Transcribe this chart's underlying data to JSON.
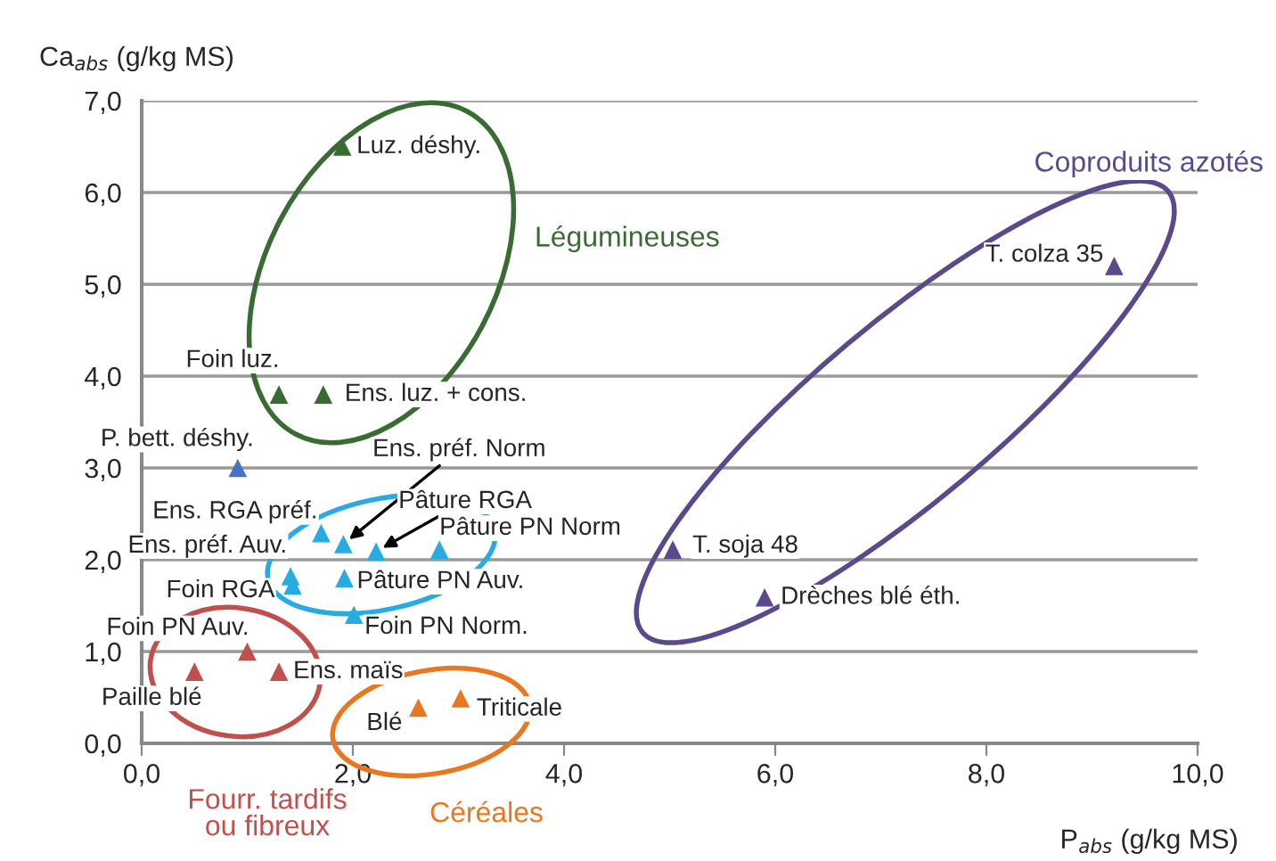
{
  "chart_data": {
    "type": "scatter",
    "xlabel": "P$_{abs}$ (g/kg MS)",
    "ylabel": "Ca$_{abs}$ (g/kg MS)",
    "xlim": [
      0,
      10
    ],
    "ylim": [
      0,
      7
    ],
    "xticks": [
      {
        "value": 0,
        "label": "0,0"
      },
      {
        "value": 2,
        "label": "2,0"
      },
      {
        "value": 4,
        "label": "4,0"
      },
      {
        "value": 6,
        "label": "6,0"
      },
      {
        "value": 8,
        "label": "8,0"
      },
      {
        "value": 10,
        "label": "10,0"
      }
    ],
    "yticks": [
      {
        "value": 0,
        "label": "0,0"
      },
      {
        "value": 1,
        "label": "1,0"
      },
      {
        "value": 2,
        "label": "2,0"
      },
      {
        "value": 3,
        "label": "3,0"
      },
      {
        "value": 4,
        "label": "4,0"
      },
      {
        "value": 5,
        "label": "5,0"
      },
      {
        "value": 6,
        "label": "6,0"
      },
      {
        "value": 7,
        "label": "7,0"
      }
    ],
    "grid": "y",
    "marker": "triangle",
    "series": [
      {
        "name": "Légumineuses",
        "color": "#3a6b35",
        "x": [
          1.9,
          1.3,
          1.72
        ],
        "values": [
          6.5,
          3.8,
          3.8
        ]
      },
      {
        "color": "#29abe2",
        "x": [
          1.7,
          1.91,
          2.22,
          2.82,
          1.41,
          1.43,
          1.92,
          2.01
        ],
        "values": [
          2.29,
          2.17,
          2.09,
          2.11,
          1.82,
          1.72,
          1.8,
          1.4
        ]
      },
      {
        "color": "#4472c4",
        "x": [
          0.91
        ],
        "values": [
          3.0
        ]
      },
      {
        "name": "Fourr. tardifs\nou fibreux",
        "color": "#c0504d",
        "x": [
          1.0,
          0.5,
          1.3
        ],
        "values": [
          1.0,
          0.78,
          0.78
        ]
      },
      {
        "name": "Céréales",
        "color": "#e87722",
        "x": [
          2.62,
          3.02
        ],
        "values": [
          0.39,
          0.49
        ]
      },
      {
        "name": "Coproduits azotés",
        "color": "#5b4a8b",
        "x": [
          9.21,
          5.03,
          5.9
        ],
        "values": [
          5.2,
          2.11,
          1.59
        ]
      }
    ],
    "annotations": [
      {
        "text": "Luz. déshy.",
        "x": 1.9,
        "y": 6.5
      },
      {
        "text": "Foin luz.",
        "x": 1.3,
        "y": 3.8
      },
      {
        "text": "Ens. luz. + cons.",
        "x": 1.72,
        "y": 3.8
      },
      {
        "text": "Ens. RGA préf.",
        "x": 1.7,
        "y": 2.29
      },
      {
        "text": "Ens. préf. Norm",
        "x": 1.91,
        "y": 2.17
      },
      {
        "text": "Pâture RGA",
        "x": 2.22,
        "y": 2.09
      },
      {
        "text": "Pâture PN Norm",
        "x": 2.82,
        "y": 2.11
      },
      {
        "text": "Ens. préf. Auv.",
        "x": 1.41,
        "y": 1.82
      },
      {
        "text": "Foin RGA",
        "x": 1.43,
        "y": 1.72
      },
      {
        "text": "Pâture PN Auv.",
        "x": 1.92,
        "y": 1.8
      },
      {
        "text": "Foin PN Norm.",
        "x": 2.01,
        "y": 1.4
      },
      {
        "text": "P. bett. déshy.",
        "x": 0.91,
        "y": 3.0
      },
      {
        "text": "Foin PN Auv.",
        "x": 1.0,
        "y": 1.0
      },
      {
        "text": "Paille blé",
        "x": 0.5,
        "y": 0.78
      },
      {
        "text": "Ens. maïs",
        "x": 1.3,
        "y": 0.78
      },
      {
        "text": "Blé",
        "x": 2.62,
        "y": 0.39
      },
      {
        "text": "Triticale",
        "x": 3.02,
        "y": 0.49
      },
      {
        "text": "T. colza 35",
        "x": 9.21,
        "y": 5.2
      },
      {
        "text": "T. soja 48",
        "x": 5.03,
        "y": 2.11
      },
      {
        "text": "Drèches blé éth.",
        "x": 5.9,
        "y": 1.59
      }
    ]
  }
}
